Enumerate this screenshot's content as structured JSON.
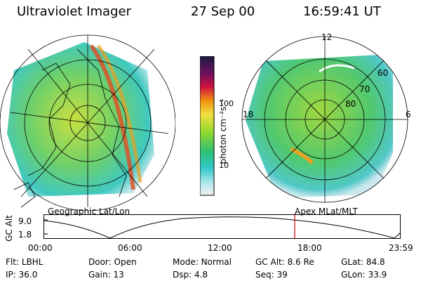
{
  "header": {
    "instrument": "Ultraviolet Imager",
    "date": "27 Sep 00",
    "time": "16:59:41 UT"
  },
  "colorbar": {
    "label": "photon cm⁻²s⁻¹",
    "ticks": [
      "100",
      "10"
    ]
  },
  "panels": {
    "left_caption": "Geographic Lat/Lon",
    "right_caption": "Apex MLat/MLT",
    "right_ring_labels": [
      "60",
      "70",
      "80"
    ],
    "right_mlt_labels": {
      "top": "12",
      "left": "18",
      "right": "6"
    }
  },
  "timeline": {
    "ylabel": "GC Alt",
    "yticks": [
      "9.0",
      "1.8"
    ],
    "xticks": [
      "00:00",
      "06:00",
      "12:00",
      "18:00",
      "23:59"
    ]
  },
  "info": {
    "row1": [
      {
        "k": "Flt:",
        "v": "LBHL"
      },
      {
        "k": "Door:",
        "v": "Open"
      },
      {
        "k": "Mode:",
        "v": "Normal"
      },
      {
        "k": "GC Alt:",
        "v": "8.6 Re"
      },
      {
        "k": "GLat:",
        "v": "84.8"
      }
    ],
    "row2": [
      {
        "k": "IP:",
        "v": "36.0"
      },
      {
        "k": "Gain:",
        "v": "13"
      },
      {
        "k": "Dsp:",
        "v": "4.8"
      },
      {
        "k": "Seq:",
        "v": "39"
      },
      {
        "k": "GLon:",
        "v": "33.9"
      }
    ]
  },
  "colors": {
    "marker": "#cc0000"
  }
}
